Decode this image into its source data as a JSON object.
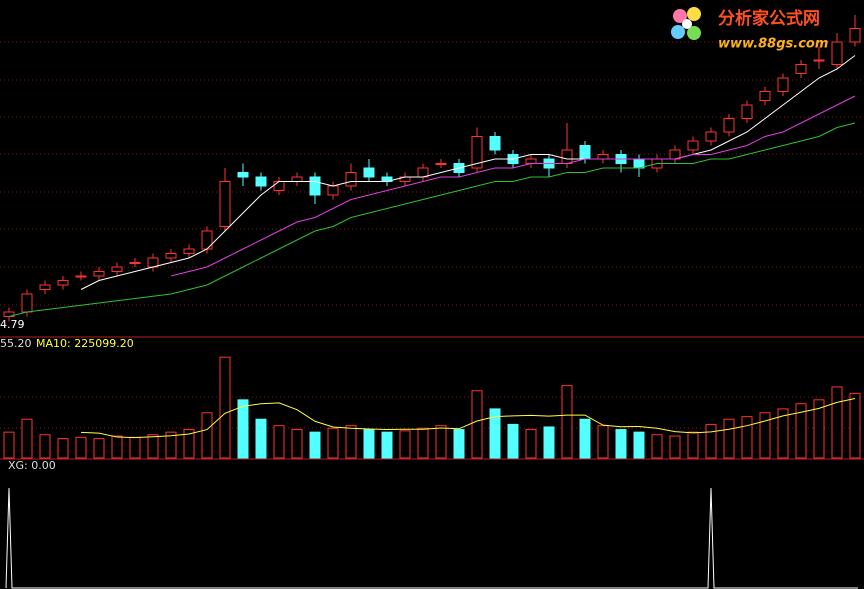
{
  "chart_data": [
    {
      "type": "candlestick",
      "up_color": "#ff3232",
      "down_color": "#54ffff",
      "open": [
        4.9,
        5.0,
        5.5,
        5.6,
        5.8,
        5.8,
        5.9,
        6.1,
        6.0,
        6.2,
        6.3,
        6.4,
        6.9,
        8.1,
        8.0,
        7.7,
        7.9,
        8.0,
        7.6,
        7.8,
        8.2,
        8.0,
        7.9,
        8.0,
        8.3,
        8.3,
        8.2,
        8.9,
        8.5,
        8.3,
        8.4,
        8.3,
        8.7,
        8.4,
        8.5,
        8.4,
        8.2,
        8.4,
        8.6,
        8.8,
        9.0,
        9.3,
        9.7,
        9.9,
        10.3,
        10.6,
        10.5,
        11.0
      ],
      "high": [
        5.1,
        5.5,
        5.7,
        5.8,
        5.9,
        6.0,
        6.1,
        6.2,
        6.3,
        6.4,
        6.5,
        6.9,
        8.2,
        8.3,
        8.1,
        8.0,
        8.1,
        8.1,
        7.9,
        8.3,
        8.4,
        8.1,
        8.1,
        8.3,
        8.4,
        8.4,
        9.1,
        9.0,
        8.6,
        8.5,
        8.5,
        9.2,
        8.8,
        8.6,
        8.6,
        8.5,
        8.5,
        8.7,
        8.9,
        9.1,
        9.4,
        9.7,
        10.0,
        10.3,
        10.6,
        10.9,
        11.2,
        11.6
      ],
      "low": [
        4.79,
        4.9,
        5.4,
        5.5,
        5.7,
        5.7,
        5.8,
        6.0,
        5.9,
        6.1,
        6.2,
        6.3,
        6.8,
        7.8,
        7.7,
        7.6,
        7.8,
        7.4,
        7.5,
        7.7,
        7.9,
        7.8,
        7.8,
        7.9,
        8.2,
        8.0,
        8.1,
        8.5,
        8.2,
        8.2,
        8.0,
        8.2,
        8.3,
        8.3,
        8.1,
        8.0,
        8.1,
        8.3,
        8.5,
        8.7,
        8.9,
        9.2,
        9.6,
        9.8,
        10.2,
        10.4,
        10.4,
        10.9
      ],
      "close": [
        5.0,
        5.4,
        5.6,
        5.7,
        5.8,
        5.9,
        6.0,
        6.1,
        6.2,
        6.3,
        6.4,
        6.8,
        7.9,
        8.0,
        7.8,
        7.9,
        8.0,
        7.6,
        7.8,
        8.1,
        8.0,
        7.9,
        8.0,
        8.2,
        8.3,
        8.1,
        8.9,
        8.6,
        8.3,
        8.4,
        8.2,
        8.6,
        8.4,
        8.5,
        8.3,
        8.2,
        8.4,
        8.6,
        8.8,
        9.0,
        9.3,
        9.6,
        9.9,
        10.2,
        10.5,
        10.6,
        11.0,
        11.3
      ],
      "series": [
        {
          "color": "#ffffff",
          "values": [
            null,
            null,
            null,
            null,
            5.5,
            5.7,
            5.8,
            5.9,
            6.0,
            6.1,
            6.2,
            6.4,
            6.8,
            7.2,
            7.6,
            7.9,
            7.9,
            7.9,
            7.8,
            7.9,
            7.9,
            7.9,
            8.0,
            8.0,
            8.1,
            8.2,
            8.3,
            8.4,
            8.4,
            8.5,
            8.5,
            8.4,
            8.4,
            8.4,
            8.4,
            8.4,
            8.4,
            8.4,
            8.5,
            8.6,
            8.8,
            9.0,
            9.3,
            9.6,
            9.9,
            10.2,
            10.4,
            10.7
          ]
        },
        {
          "color": "#e040e0",
          "values": [
            null,
            null,
            null,
            null,
            null,
            null,
            null,
            null,
            null,
            5.8,
            5.9,
            6.0,
            6.2,
            6.4,
            6.6,
            6.8,
            7.0,
            7.1,
            7.3,
            7.5,
            7.6,
            7.7,
            7.8,
            7.9,
            8.0,
            8.0,
            8.1,
            8.2,
            8.2,
            8.3,
            8.3,
            8.3,
            8.4,
            8.4,
            8.4,
            8.4,
            8.4,
            8.4,
            8.5,
            8.5,
            8.6,
            8.7,
            8.9,
            9.0,
            9.2,
            9.4,
            9.6,
            9.8
          ]
        },
        {
          "color": "#30c030",
          "values": [
            4.9,
            5.0,
            5.05,
            5.1,
            5.15,
            5.2,
            5.25,
            5.3,
            5.35,
            5.4,
            5.5,
            5.6,
            5.8,
            6.0,
            6.2,
            6.4,
            6.6,
            6.8,
            6.9,
            7.1,
            7.2,
            7.3,
            7.4,
            7.5,
            7.6,
            7.7,
            7.8,
            7.9,
            7.9,
            8.0,
            8.0,
            8.1,
            8.1,
            8.2,
            8.2,
            8.2,
            8.3,
            8.3,
            8.3,
            8.4,
            8.4,
            8.5,
            8.6,
            8.7,
            8.8,
            8.9,
            9.1,
            9.2
          ]
        }
      ],
      "ylim": [
        4.6,
        11.8
      ]
    },
    {
      "type": "bar",
      "legend": [
        "55.20",
        "MA10: 225099.20"
      ],
      "values": [
        200000,
        300000,
        180000,
        150000,
        160000,
        150000,
        170000,
        160000,
        180000,
        200000,
        220000,
        350000,
        780000,
        450000,
        300000,
        250000,
        220000,
        200000,
        230000,
        250000,
        220000,
        200000,
        210000,
        230000,
        250000,
        220000,
        520000,
        380000,
        260000,
        220000,
        240000,
        560000,
        300000,
        250000,
        220000,
        200000,
        180000,
        170000,
        200000,
        260000,
        300000,
        320000,
        350000,
        380000,
        420000,
        450000,
        550000,
        500000
      ],
      "series": [
        {
          "color": "#ffff40",
          "values": [
            null,
            null,
            null,
            null,
            198000,
            192000,
            162000,
            158000,
            164000,
            172000,
            186000,
            220000,
            346000,
            400000,
            420000,
            426000,
            374000,
            284000,
            240000,
            230000,
            224000,
            220000,
            222000,
            222000,
            232000,
            226000,
            286000,
            320000,
            326000,
            330000,
            324000,
            332000,
            332000,
            254000,
            242000,
            244000,
            230000,
            204000,
            194000,
            202000,
            222000,
            250000,
            286000,
            326000,
            354000,
            384000,
            430000,
            460000
          ]
        }
      ],
      "ylim": [
        0,
        820000
      ]
    },
    {
      "type": "line",
      "title": "XG: 0.00",
      "color": "#ffffff",
      "values": [
        1,
        0,
        0,
        0,
        0,
        0,
        0,
        0,
        0,
        0,
        0,
        0,
        0,
        0,
        0,
        0,
        0,
        0,
        0,
        0,
        0,
        0,
        0,
        0,
        0,
        0,
        0,
        0,
        0,
        0,
        0,
        0,
        0,
        0,
        0,
        0,
        0,
        0,
        0,
        1,
        0,
        0,
        0,
        0,
        0,
        0,
        0,
        0
      ],
      "ylim": [
        0,
        1.1
      ]
    }
  ],
  "watermark": {
    "title": "分析家公式网",
    "url": "www.88gs.com"
  }
}
